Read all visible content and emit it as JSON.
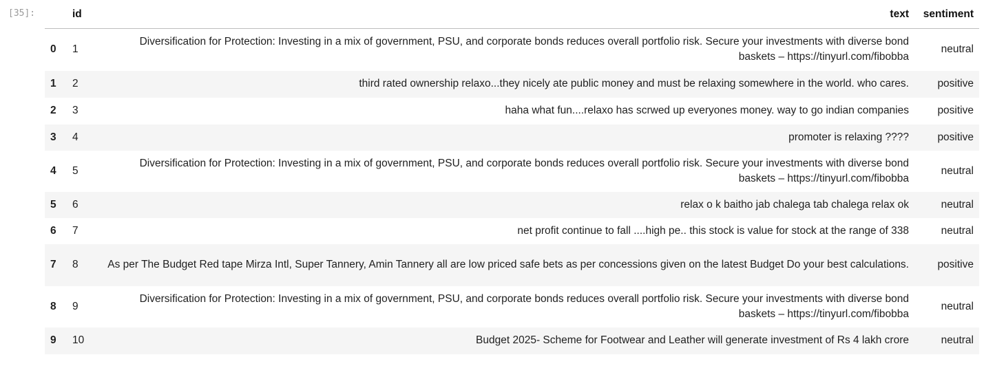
{
  "prompt_label": "[35]:",
  "columns": {
    "index": "",
    "id": "id",
    "text": "text",
    "sentiment": "sentiment"
  },
  "rows": [
    {
      "index": "0",
      "id": "1",
      "text": "Diversification for Protection: Investing in a mix of government, PSU, and corporate bonds reduces overall portfolio risk. Secure your investments with diverse bond baskets – https://tinyurl.com/fibobba",
      "sentiment": "neutral"
    },
    {
      "index": "1",
      "id": "2",
      "text": "third rated ownership relaxo...they nicely ate public money and must be relaxing somewhere in the world. who cares.",
      "sentiment": "positive"
    },
    {
      "index": "2",
      "id": "3",
      "text": "haha what fun....relaxo has scrwed up everyones money. way to go indian companies",
      "sentiment": "positive"
    },
    {
      "index": "3",
      "id": "4",
      "text": "promoter is relaxing ????",
      "sentiment": "positive"
    },
    {
      "index": "4",
      "id": "5",
      "text": "Diversification for Protection: Investing in a mix of government, PSU, and corporate bonds reduces overall portfolio risk. Secure your investments with diverse bond baskets – https://tinyurl.com/fibobba",
      "sentiment": "neutral"
    },
    {
      "index": "5",
      "id": "6",
      "text": "relax o k baitho jab chalega tab chalega relax ok",
      "sentiment": "neutral"
    },
    {
      "index": "6",
      "id": "7",
      "text": "net profit continue to fall ....high pe.. this stock is value for stock at the range of 338",
      "sentiment": "neutral"
    },
    {
      "index": "7",
      "id": "8",
      "text": "As per The Budget Red tape Mirza Intl, Super Tannery, Amin Tannery all are low priced safe bets as per concessions given on the latest Budget Do your best calculations.",
      "sentiment": "positive"
    },
    {
      "index": "8",
      "id": "9",
      "text": "Diversification for Protection: Investing in a mix of government, PSU, and corporate bonds reduces overall portfolio risk. Secure your investments with diverse bond baskets – https://tinyurl.com/fibobba",
      "sentiment": "neutral"
    },
    {
      "index": "9",
      "id": "10",
      "text": "Budget 2025- Scheme for Footwear and Leather will generate investment of Rs 4 lakh crore",
      "sentiment": "neutral"
    }
  ]
}
